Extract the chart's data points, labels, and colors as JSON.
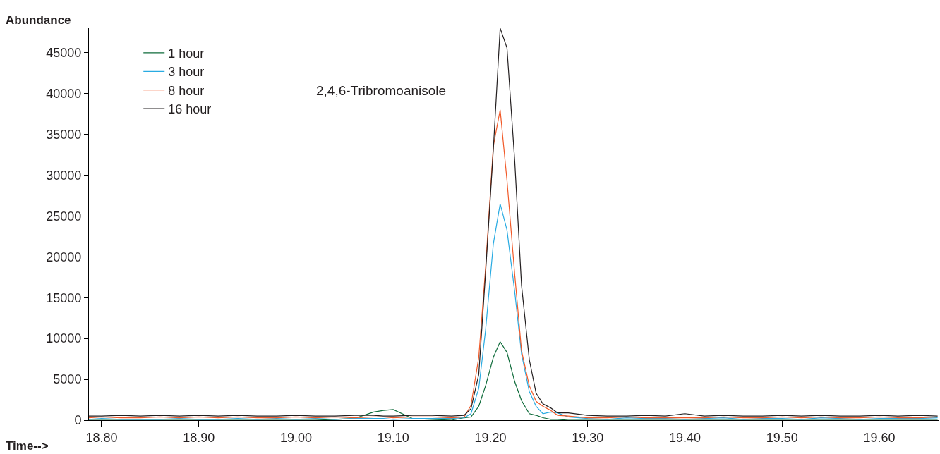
{
  "chart_data": {
    "type": "line",
    "xlabel": "Time-->",
    "ylabel": "Abundance",
    "annotations": [
      "2,4,6-Tribromoanisole"
    ],
    "xlim": [
      18.787,
      19.661
    ],
    "ylim": [
      0,
      48000
    ],
    "xticks": [
      {
        "value": 18.8,
        "label": "18.80"
      },
      {
        "value": 18.9,
        "label": "18.90"
      },
      {
        "value": 19.0,
        "label": "19.00"
      },
      {
        "value": 19.1,
        "label": "19.10"
      },
      {
        "value": 19.2,
        "label": "19.20"
      },
      {
        "value": 19.3,
        "label": "19.30"
      },
      {
        "value": 19.4,
        "label": "19.40"
      },
      {
        "value": 19.5,
        "label": "19.50"
      },
      {
        "value": 19.6,
        "label": "19.60"
      }
    ],
    "yticks": [
      0,
      5000,
      10000,
      15000,
      20000,
      25000,
      30000,
      35000,
      40000,
      45000
    ],
    "x": [
      18.787,
      18.8,
      18.82,
      18.84,
      18.86,
      18.88,
      18.9,
      18.92,
      18.94,
      18.96,
      18.98,
      19.0,
      19.02,
      19.04,
      19.06,
      19.08,
      19.09,
      19.1,
      19.12,
      19.14,
      19.16,
      19.173,
      19.18,
      19.188,
      19.195,
      19.203,
      19.21,
      19.217,
      19.225,
      19.232,
      19.24,
      19.247,
      19.254,
      19.262,
      19.269,
      19.28,
      19.3,
      19.32,
      19.34,
      19.36,
      19.38,
      19.4,
      19.42,
      19.44,
      19.46,
      19.48,
      19.5,
      19.52,
      19.54,
      19.56,
      19.58,
      19.6,
      19.62,
      19.64,
      19.66
    ],
    "series": [
      {
        "name": "1 hour",
        "color": "#0e6b3a",
        "values": [
          0,
          0,
          0,
          0,
          0,
          0,
          0,
          0,
          0,
          0,
          0,
          0,
          0,
          100,
          200,
          1000,
          1200,
          1300,
          200,
          100,
          0,
          300,
          400,
          1700,
          4200,
          7700,
          9600,
          8300,
          4700,
          2400,
          800,
          600,
          300,
          100,
          100,
          0,
          0,
          0,
          0,
          0,
          0,
          0,
          0,
          0,
          0,
          0,
          0,
          0,
          0,
          0,
          0,
          0,
          0,
          0,
          0
        ]
      },
      {
        "name": "3 hour",
        "color": "#29abe2",
        "values": [
          100,
          200,
          100,
          100,
          100,
          200,
          100,
          100,
          200,
          100,
          200,
          100,
          200,
          100,
          200,
          200,
          200,
          100,
          200,
          200,
          200,
          300,
          800,
          3900,
          11000,
          21600,
          26500,
          23300,
          15700,
          8100,
          3500,
          1700,
          800,
          1000,
          900,
          400,
          200,
          100,
          300,
          200,
          200,
          100,
          200,
          300,
          100,
          200,
          200,
          100,
          300,
          200,
          100,
          200,
          200,
          200,
          300
        ]
      },
      {
        "name": "8 hour",
        "color": "#f15a29",
        "values": [
          300,
          400,
          300,
          300,
          400,
          300,
          400,
          300,
          400,
          300,
          300,
          400,
          300,
          400,
          300,
          400,
          400,
          300,
          400,
          400,
          300,
          400,
          1800,
          7700,
          18600,
          33600,
          38000,
          29400,
          17800,
          8500,
          4200,
          2300,
          1700,
          1200,
          600,
          500,
          300,
          300,
          400,
          300,
          300,
          300,
          300,
          400,
          300,
          300,
          400,
          300,
          400,
          300,
          300,
          400,
          300,
          300,
          400
        ]
      },
      {
        "name": "16 hour",
        "color": "#231f20",
        "values": [
          500,
          500,
          600,
          500,
          600,
          500,
          600,
          500,
          600,
          500,
          500,
          600,
          500,
          500,
          600,
          600,
          500,
          500,
          600,
          600,
          500,
          600,
          1400,
          5600,
          18000,
          33200,
          48000,
          45600,
          31700,
          16500,
          7400,
          3300,
          2000,
          1500,
          900,
          900,
          600,
          500,
          500,
          600,
          500,
          800,
          500,
          600,
          500,
          500,
          600,
          500,
          600,
          500,
          500,
          600,
          500,
          600,
          500
        ]
      }
    ],
    "legend": "top left",
    "marker": "none",
    "line_style": "solid"
  }
}
